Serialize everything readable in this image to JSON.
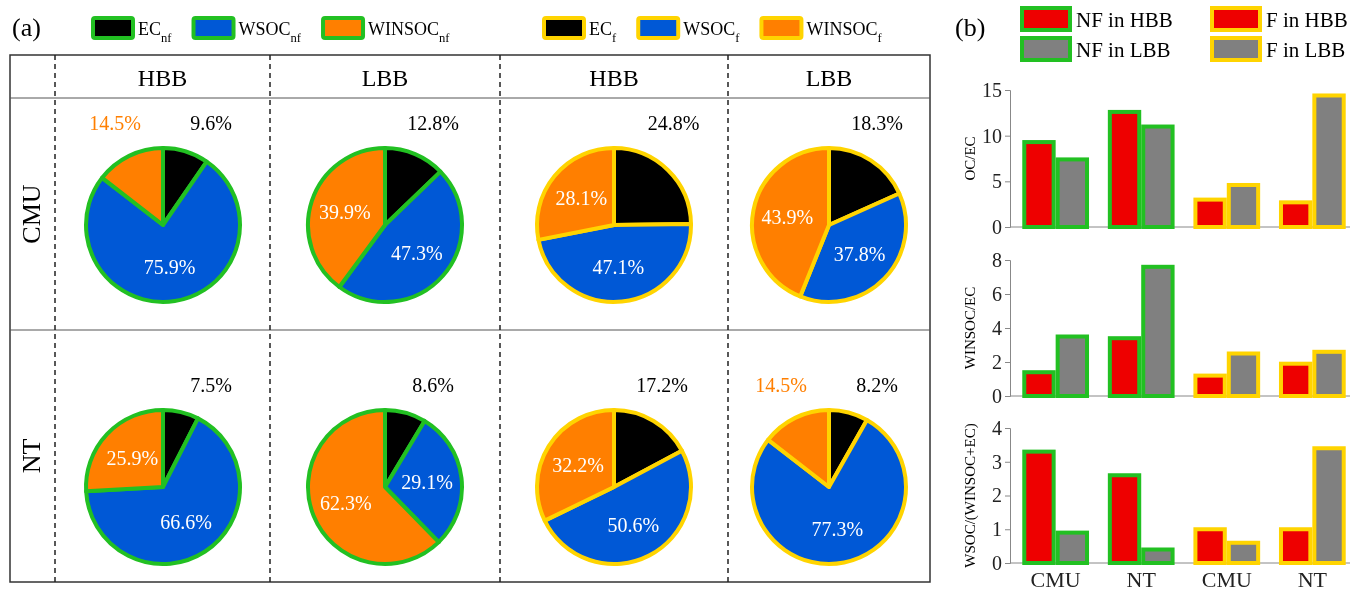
{
  "chart_data": [
    {
      "type": "other",
      "title": "(a)",
      "annotations": [
        "HBB",
        "LBB",
        "HBB",
        "LBB",
        "CMU",
        "NT"
      ]
    },
    {
      "type": "pie",
      "categories": [
        "EC$_{nf}$",
        "WSOC$_{nf}$",
        "WINSOC$_{nf}$"
      ],
      "values": [
        9.6,
        75.9,
        14.5
      ],
      "value_labels": [
        "9.6%",
        "75.9%",
        "14.5%"
      ],
      "colors": [
        "#000000",
        "#0058d6",
        "#ff7f00"
      ],
      "legend": "top"
    },
    {
      "type": "pie",
      "categories": [
        null,
        null,
        null
      ],
      "values": [
        12.8,
        47.3,
        39.9
      ],
      "value_labels": [
        "12.8%",
        "47.3%",
        "39.9%"
      ],
      "colors": [
        "#000000",
        "#0058d6",
        "#ff7f00"
      ]
    },
    {
      "type": "pie",
      "categories": [
        "EC$_{f}$",
        "WSOC$_{f}$",
        "WINSOC$_{f}$"
      ],
      "values": [
        24.8,
        47.1,
        28.1
      ],
      "value_labels": [
        "24.8%",
        "47.1%",
        "28.1%"
      ],
      "colors": [
        "#000000",
        "#0058d6",
        "#ff7f00"
      ],
      "legend": "top"
    },
    {
      "type": "pie",
      "categories": [
        null,
        null,
        null
      ],
      "values": [
        18.3,
        37.8,
        43.9
      ],
      "value_labels": [
        "18.3%",
        "37.8%",
        "43.9%"
      ],
      "colors": [
        "#000000",
        "#0058d6",
        "#ff7f00"
      ]
    },
    {
      "type": "pie",
      "categories": [
        null,
        null,
        null
      ],
      "values": [
        7.5,
        66.6,
        25.9
      ],
      "value_labels": [
        "7.5%",
        "66.6%",
        "25.9%"
      ],
      "colors": [
        "#000000",
        "#0058d6",
        "#ff7f00"
      ]
    },
    {
      "type": "pie",
      "categories": [
        null,
        null,
        null
      ],
      "values": [
        8.6,
        29.1,
        62.3
      ],
      "value_labels": [
        "8.6%",
        "29.1%",
        "62.3%"
      ],
      "colors": [
        "#000000",
        "#0058d6",
        "#ff7f00"
      ]
    },
    {
      "type": "pie",
      "categories": [
        null,
        null,
        null
      ],
      "values": [
        17.2,
        50.6,
        32.2
      ],
      "value_labels": [
        "17.2%",
        "50.6%",
        "32.2%"
      ],
      "colors": [
        "#000000",
        "#0058d6",
        "#ff7f00"
      ]
    },
    {
      "type": "pie",
      "categories": [
        null,
        null,
        null
      ],
      "values": [
        8.2,
        77.3,
        14.5
      ],
      "value_labels": [
        "8.2%",
        "77.3%",
        "14.5%"
      ],
      "colors": [
        "#000000",
        "#0058d6",
        "#ff7f00"
      ]
    },
    {
      "type": "bar",
      "title": "(b)",
      "ylabel": "OC/EC",
      "categories": [
        null,
        null,
        null,
        null
      ],
      "ylim": [
        0,
        15
      ],
      "yticks": [
        0,
        5,
        10,
        15
      ],
      "tick_labels": "y",
      "legend": "top",
      "series": [
        {
          "name": "NF in HBB",
          "color": "#ee0000",
          "values": [
            9.3,
            12.6,
            null,
            null
          ]
        },
        {
          "name": "NF in LBB",
          "color": "#808080",
          "values": [
            7.4,
            11.0,
            null,
            null
          ]
        },
        {
          "name": "F in HBB",
          "color": "#ee0000",
          "values": [
            null,
            null,
            3.0,
            2.7
          ]
        },
        {
          "name": "F in LBB",
          "color": "#808080",
          "values": [
            null,
            null,
            4.6,
            14.4
          ]
        }
      ]
    },
    {
      "type": "bar",
      "ylabel": "WINSOC/EC",
      "categories": [
        null,
        null,
        null,
        null
      ],
      "ylim": [
        0,
        8
      ],
      "yticks": [
        0,
        2,
        4,
        6,
        8
      ],
      "tick_labels": "y",
      "series": [
        {
          "color": "#ee0000",
          "values": [
            1.4,
            3.4,
            null,
            null
          ]
        },
        {
          "color": "#808080",
          "values": [
            3.5,
            7.6,
            null,
            null
          ]
        },
        {
          "color": "#ee0000",
          "values": [
            null,
            null,
            1.2,
            1.9
          ]
        },
        {
          "color": "#808080",
          "values": [
            null,
            null,
            2.5,
            2.6
          ]
        }
      ]
    },
    {
      "type": "bar",
      "ylabel": "WSOC/(WINSOC+EC)",
      "categories": [
        "CMU",
        "NT",
        "CMU",
        "NT"
      ],
      "ylim": [
        0,
        4
      ],
      "yticks": [
        0,
        1,
        2,
        3,
        4
      ],
      "series": [
        {
          "color": "#ee0000",
          "values": [
            3.3,
            2.6,
            null,
            null
          ]
        },
        {
          "color": "#808080",
          "values": [
            0.9,
            0.4,
            null,
            null
          ]
        },
        {
          "color": "#ee0000",
          "values": [
            null,
            null,
            1.0,
            1.0
          ]
        },
        {
          "color": "#808080",
          "values": [
            null,
            null,
            0.6,
            3.4
          ]
        }
      ]
    }
  ]
}
